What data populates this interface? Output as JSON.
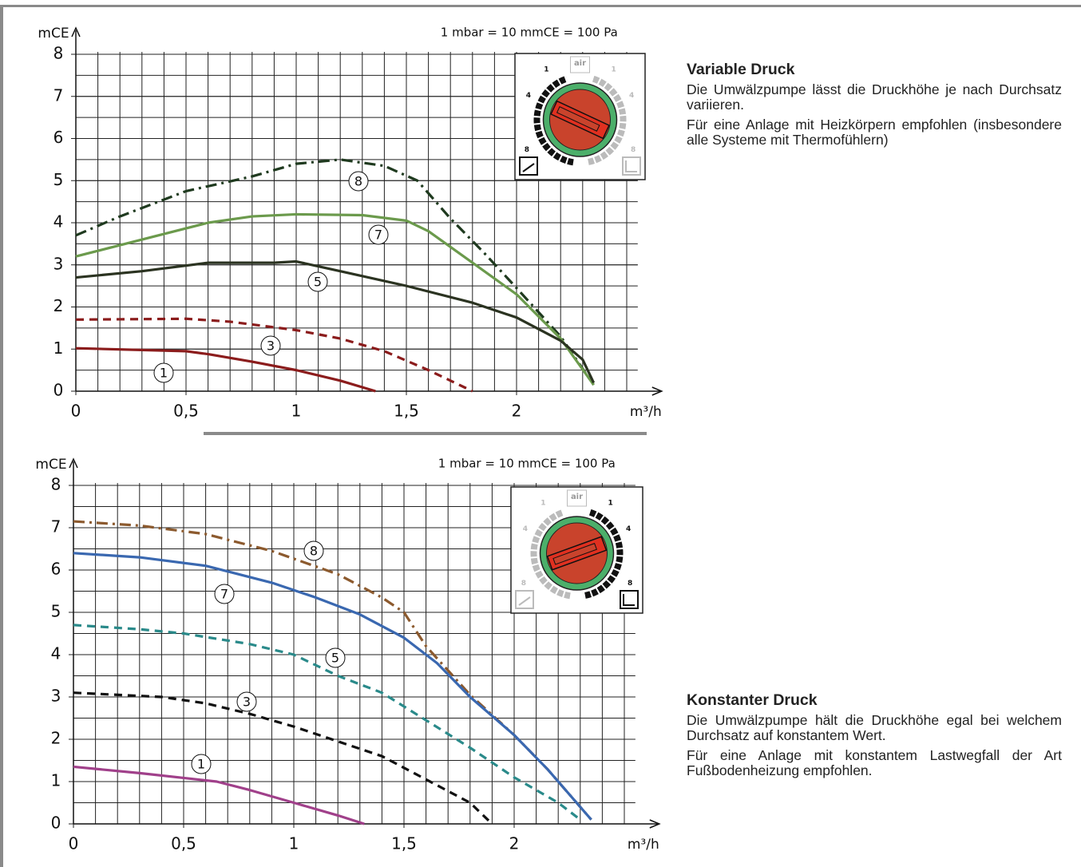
{
  "chart_data": [
    {
      "type": "line",
      "y_label": "mCE",
      "x_label": "m³/h",
      "note": "1 mbar = 10 mmCE = 100 Pa",
      "xlim": [
        0,
        2.55
      ],
      "ylim": [
        0,
        8
      ],
      "xticks": [
        0,
        {
          "value": 0.5,
          "label": "0,5"
        },
        1,
        {
          "value": 1.5,
          "label": "1,5"
        },
        2
      ],
      "yticks": [
        0,
        1,
        2,
        3,
        4,
        5,
        6,
        7,
        8
      ],
      "grid": true,
      "dial_labels": [
        "1",
        "4",
        "8",
        "1",
        "4",
        "8"
      ],
      "dial_icon": "air",
      "series": [
        {
          "name": "8",
          "color": "#1f3a1f",
          "style": "dashdot",
          "x": [
            0,
            0.2,
            0.5,
            0.8,
            1.0,
            1.2,
            1.4,
            1.55,
            1.7,
            1.85,
            2.0,
            2.2,
            2.35
          ],
          "values": [
            3.7,
            4.15,
            4.75,
            5.1,
            5.4,
            5.5,
            5.35,
            5.0,
            4.1,
            3.3,
            2.45,
            1.3,
            0.15
          ]
        },
        {
          "name": "7",
          "color": "#6b9a4c",
          "style": "solid",
          "x": [
            0,
            0.3,
            0.6,
            0.8,
            1.0,
            1.3,
            1.5,
            1.6,
            1.8,
            2.0,
            2.2,
            2.35
          ],
          "values": [
            3.2,
            3.6,
            4.0,
            4.15,
            4.2,
            4.18,
            4.05,
            3.8,
            3.05,
            2.3,
            1.25,
            0.15
          ]
        },
        {
          "name": "5",
          "color": "#2b3321",
          "style": "solid",
          "x": [
            0,
            0.3,
            0.6,
            0.9,
            1.0,
            1.2,
            1.5,
            1.8,
            2.0,
            2.2,
            2.3,
            2.35
          ],
          "values": [
            2.7,
            2.85,
            3.05,
            3.05,
            3.08,
            2.85,
            2.5,
            2.1,
            1.75,
            1.2,
            0.75,
            0.2
          ]
        },
        {
          "name": "3",
          "color": "#8b1c1c",
          "style": "dashed",
          "x": [
            0,
            0.5,
            0.7,
            1.0,
            1.2,
            1.4,
            1.6,
            1.8
          ],
          "values": [
            1.7,
            1.72,
            1.65,
            1.45,
            1.25,
            0.95,
            0.5,
            0
          ]
        },
        {
          "name": "1",
          "color": "#8b1c1c",
          "style": "solid",
          "x": [
            0,
            0.5,
            0.6,
            0.8,
            1.0,
            1.2,
            1.36
          ],
          "values": [
            1.02,
            0.95,
            0.88,
            0.7,
            0.5,
            0.25,
            0
          ]
        }
      ]
    },
    {
      "type": "line",
      "y_label": "mCE",
      "x_label": "m³/h",
      "note": "1 mbar = 10 mmCE = 100 Pa",
      "xlim": [
        0,
        2.55
      ],
      "ylim": [
        0,
        8
      ],
      "xticks": [
        0,
        {
          "value": 0.5,
          "label": "0,5"
        },
        1,
        {
          "value": 1.5,
          "label": "1,5"
        },
        2
      ],
      "yticks": [
        0,
        1,
        2,
        3,
        4,
        5,
        6,
        7,
        8
      ],
      "grid": true,
      "dial_labels": [
        "1",
        "4",
        "8",
        "1",
        "4",
        "8"
      ],
      "dial_icon": "air",
      "series": [
        {
          "name": "8",
          "color": "#8c5a2e",
          "style": "dashdot",
          "x": [
            0,
            0.3,
            0.6,
            0.9,
            1.2,
            1.4,
            1.5,
            1.6,
            1.8,
            2.0,
            2.15,
            2.35
          ],
          "values": [
            7.15,
            7.05,
            6.85,
            6.45,
            5.9,
            5.35,
            5.0,
            4.2,
            3.05,
            2.1,
            1.3,
            0.1
          ]
        },
        {
          "name": "7",
          "color": "#3a68b0",
          "style": "solid",
          "x": [
            0,
            0.3,
            0.6,
            0.9,
            1.1,
            1.3,
            1.5,
            1.65,
            1.8,
            2.0,
            2.15,
            2.35
          ],
          "values": [
            6.4,
            6.3,
            6.1,
            5.7,
            5.35,
            4.95,
            4.4,
            3.8,
            3.0,
            2.1,
            1.3,
            0.1
          ]
        },
        {
          "name": "5",
          "color": "#2a8a8a",
          "style": "dashed",
          "x": [
            0,
            0.3,
            0.5,
            0.8,
            1.0,
            1.2,
            1.4,
            1.6,
            1.8,
            2.0,
            2.2,
            2.3
          ],
          "values": [
            4.7,
            4.6,
            4.5,
            4.25,
            4.0,
            3.5,
            3.1,
            2.45,
            1.8,
            1.1,
            0.5,
            0.1
          ]
        },
        {
          "name": "3",
          "color": "#111111",
          "style": "dashed",
          "x": [
            0,
            0.4,
            0.6,
            0.8,
            1.0,
            1.2,
            1.4,
            1.6,
            1.8,
            1.9
          ],
          "values": [
            3.1,
            3.0,
            2.85,
            2.6,
            2.3,
            1.95,
            1.6,
            1.05,
            0.5,
            0
          ]
        },
        {
          "name": "1",
          "color": "#a0408a",
          "style": "solid",
          "x": [
            0,
            0.3,
            0.65,
            0.8,
            1.0,
            1.2,
            1.32
          ],
          "values": [
            1.35,
            1.2,
            1.0,
            0.8,
            0.5,
            0.2,
            0
          ]
        }
      ]
    }
  ],
  "sections": [
    {
      "heading": "Variable Druck",
      "paragraphs": [
        "Die Umwälzpumpe lässt die Druckhöhe je nach Durchsatz variieren.",
        "Für eine Anlage mit Heizkörpern empfohlen (insbesondere alle Systeme mit Thermofühlern)"
      ]
    },
    {
      "heading": "Konstanter Druck",
      "paragraphs": [
        "Die Umwälzpumpe hält die Druckhöhe egal bei welchem Durchsatz auf konstantem Wert.",
        "Für eine Anlage mit konstantem Lastwegfall der Art Fußbodenheizung empfohlen."
      ]
    }
  ]
}
